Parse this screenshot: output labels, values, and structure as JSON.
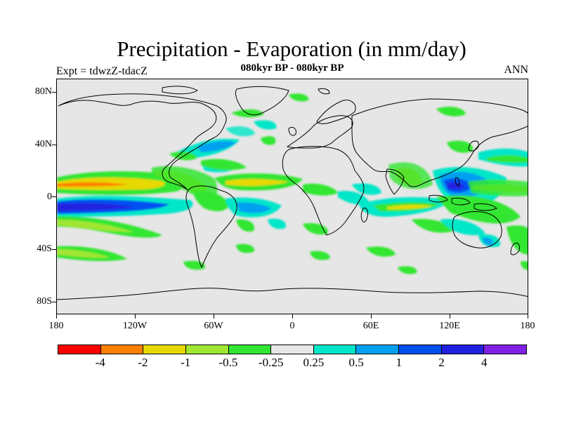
{
  "title": "Precipitation - Evaporation (in mm/day)",
  "subtitle": "080kyr BP - 080kyr BP",
  "left_label": "Expt = tdwzZ-tdacZ",
  "right_label": "ANN",
  "map": {
    "projection": "cylindrical-equidistant",
    "lon_range": [
      -180,
      180
    ],
    "lat_range": [
      -90,
      90
    ],
    "ocean_land_fill": "#e6e6e6",
    "coastline_color": "#000000",
    "y_ticks": [
      {
        "label": "80N",
        "lat": 80
      },
      {
        "label": "40N",
        "lat": 40
      },
      {
        "label": "0",
        "lat": 0
      },
      {
        "label": "40S",
        "lat": -40
      },
      {
        "label": "80S",
        "lat": -80
      }
    ],
    "x_ticks": [
      {
        "label": "180",
        "lon": -180
      },
      {
        "label": "120W",
        "lon": -120
      },
      {
        "label": "60W",
        "lon": -60
      },
      {
        "label": "0",
        "lon": 0
      },
      {
        "label": "60E",
        "lon": 60
      },
      {
        "label": "120E",
        "lon": 120
      },
      {
        "label": "180",
        "lon": 180
      }
    ]
  },
  "legend": {
    "colors": [
      "#ff0000",
      "#ff7f00",
      "#e6d800",
      "#a0e632",
      "#33e633",
      "#e6e6e6",
      "#00e6c8",
      "#00a0f0",
      "#0050f0",
      "#2020e0",
      "#8020e6"
    ],
    "labels": [
      "-4",
      "-2",
      "-1",
      "-0.5",
      "-0.25",
      "0.25",
      "0.5",
      "1",
      "2",
      "4"
    ]
  }
}
